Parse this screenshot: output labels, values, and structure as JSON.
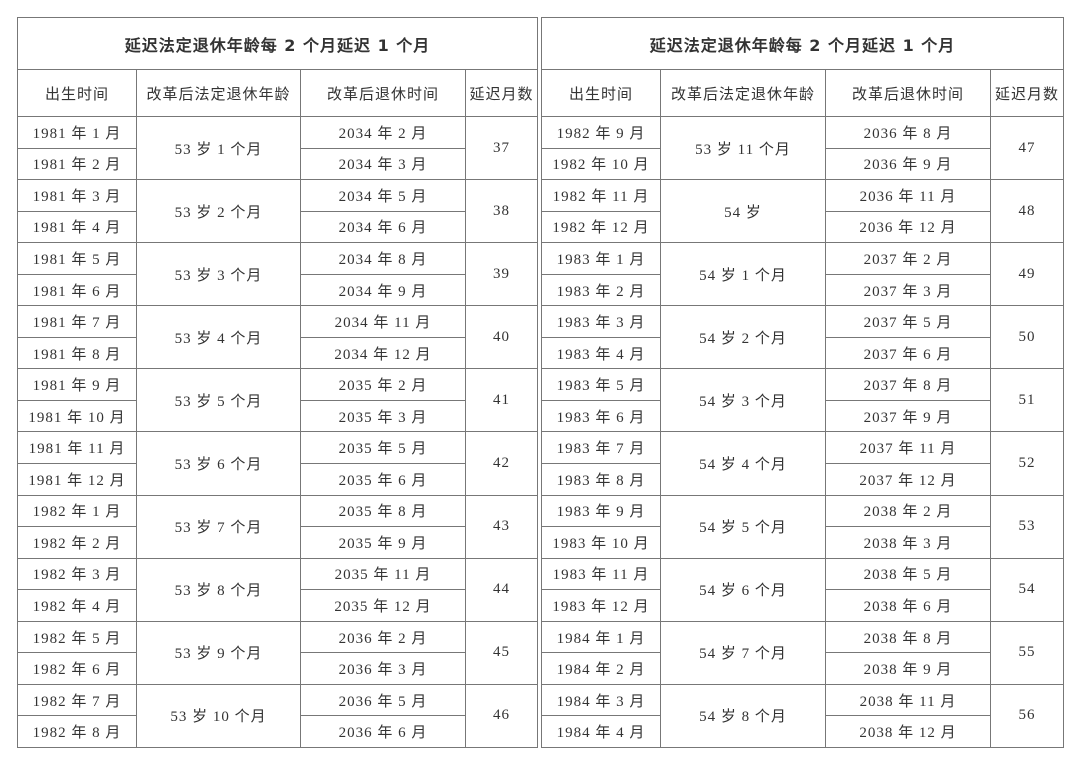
{
  "tables": [
    {
      "title": "延迟法定退休年龄每 2 个月延迟 1 个月",
      "headers": [
        "出生时间",
        "改革后法定退休年龄",
        "改革后退休时间",
        "延迟月数"
      ],
      "groups": [
        {
          "births": [
            "1981 年 1 月",
            "1981 年 2 月"
          ],
          "age": "53 岁 1 个月",
          "retire": [
            "2034 年 2 月",
            "2034 年 3 月"
          ],
          "delay": 37
        },
        {
          "births": [
            "1981 年 3 月",
            "1981 年 4 月"
          ],
          "age": "53 岁 2 个月",
          "retire": [
            "2034 年 5 月",
            "2034 年 6 月"
          ],
          "delay": 38
        },
        {
          "births": [
            "1981 年 5 月",
            "1981 年 6 月"
          ],
          "age": "53 岁 3 个月",
          "retire": [
            "2034 年 8 月",
            "2034 年 9 月"
          ],
          "delay": 39
        },
        {
          "births": [
            "1981 年 7 月",
            "1981 年 8 月"
          ],
          "age": "53 岁 4 个月",
          "retire": [
            "2034 年 11 月",
            "2034 年 12 月"
          ],
          "delay": 40
        },
        {
          "births": [
            "1981 年 9 月",
            "1981 年 10 月"
          ],
          "age": "53 岁 5 个月",
          "retire": [
            "2035 年 2 月",
            "2035 年 3 月"
          ],
          "delay": 41
        },
        {
          "births": [
            "1981 年 11 月",
            "1981 年 12 月"
          ],
          "age": "53 岁 6 个月",
          "retire": [
            "2035 年 5 月",
            "2035 年 6 月"
          ],
          "delay": 42
        },
        {
          "births": [
            "1982 年 1 月",
            "1982 年 2 月"
          ],
          "age": "53 岁 7 个月",
          "retire": [
            "2035 年 8 月",
            "2035 年 9 月"
          ],
          "delay": 43
        },
        {
          "births": [
            "1982 年 3 月",
            "1982 年 4 月"
          ],
          "age": "53 岁 8 个月",
          "retire": [
            "2035 年 11 月",
            "2035 年 12 月"
          ],
          "delay": 44
        },
        {
          "births": [
            "1982 年 5 月",
            "1982 年 6 月"
          ],
          "age": "53 岁 9 个月",
          "retire": [
            "2036 年 2 月",
            "2036 年 3 月"
          ],
          "delay": 45
        },
        {
          "births": [
            "1982 年 7 月",
            "1982 年 8 月"
          ],
          "age": "53 岁 10 个月",
          "retire": [
            "2036 年 5 月",
            "2036 年 6 月"
          ],
          "delay": 46
        }
      ]
    },
    {
      "title": "延迟法定退休年龄每 2 个月延迟 1 个月",
      "headers": [
        "出生时间",
        "改革后法定退休年龄",
        "改革后退休时间",
        "延迟月数"
      ],
      "groups": [
        {
          "births": [
            "1982 年 9 月",
            "1982 年 10 月"
          ],
          "age": "53 岁 11 个月",
          "retire": [
            "2036 年 8 月",
            "2036 年 9 月"
          ],
          "delay": 47
        },
        {
          "births": [
            "1982 年 11 月",
            "1982 年 12 月"
          ],
          "age": "54 岁",
          "retire": [
            "2036 年 11 月",
            "2036 年 12 月"
          ],
          "delay": 48
        },
        {
          "births": [
            "1983 年 1 月",
            "1983 年 2 月"
          ],
          "age": "54 岁 1 个月",
          "retire": [
            "2037 年 2 月",
            "2037 年 3 月"
          ],
          "delay": 49
        },
        {
          "births": [
            "1983 年 3 月",
            "1983 年 4 月"
          ],
          "age": "54 岁 2 个月",
          "retire": [
            "2037 年 5 月",
            "2037 年 6 月"
          ],
          "delay": 50
        },
        {
          "births": [
            "1983 年 5 月",
            "1983 年 6 月"
          ],
          "age": "54 岁 3 个月",
          "retire": [
            "2037 年 8 月",
            "2037 年 9 月"
          ],
          "delay": 51
        },
        {
          "births": [
            "1983 年 7 月",
            "1983 年 8 月"
          ],
          "age": "54 岁 4 个月",
          "retire": [
            "2037 年 11 月",
            "2037 年 12 月"
          ],
          "delay": 52
        },
        {
          "births": [
            "1983 年 9 月",
            "1983 年 10 月"
          ],
          "age": "54 岁 5 个月",
          "retire": [
            "2038 年 2 月",
            "2038 年 3 月"
          ],
          "delay": 53
        },
        {
          "births": [
            "1983 年 11 月",
            "1983 年 12 月"
          ],
          "age": "54 岁 6 个月",
          "retire": [
            "2038 年 5 月",
            "2038 年 6 月"
          ],
          "delay": 54
        },
        {
          "births": [
            "1984 年 1 月",
            "1984 年 2 月"
          ],
          "age": "54 岁 7 个月",
          "retire": [
            "2038 年 8 月",
            "2038 年 9 月"
          ],
          "delay": 55
        },
        {
          "births": [
            "1984 年 3 月",
            "1984 年 4 月"
          ],
          "age": "54 岁 8 个月",
          "retire": [
            "2038 年 11 月",
            "2038 年 12 月"
          ],
          "delay": 56
        }
      ]
    }
  ]
}
